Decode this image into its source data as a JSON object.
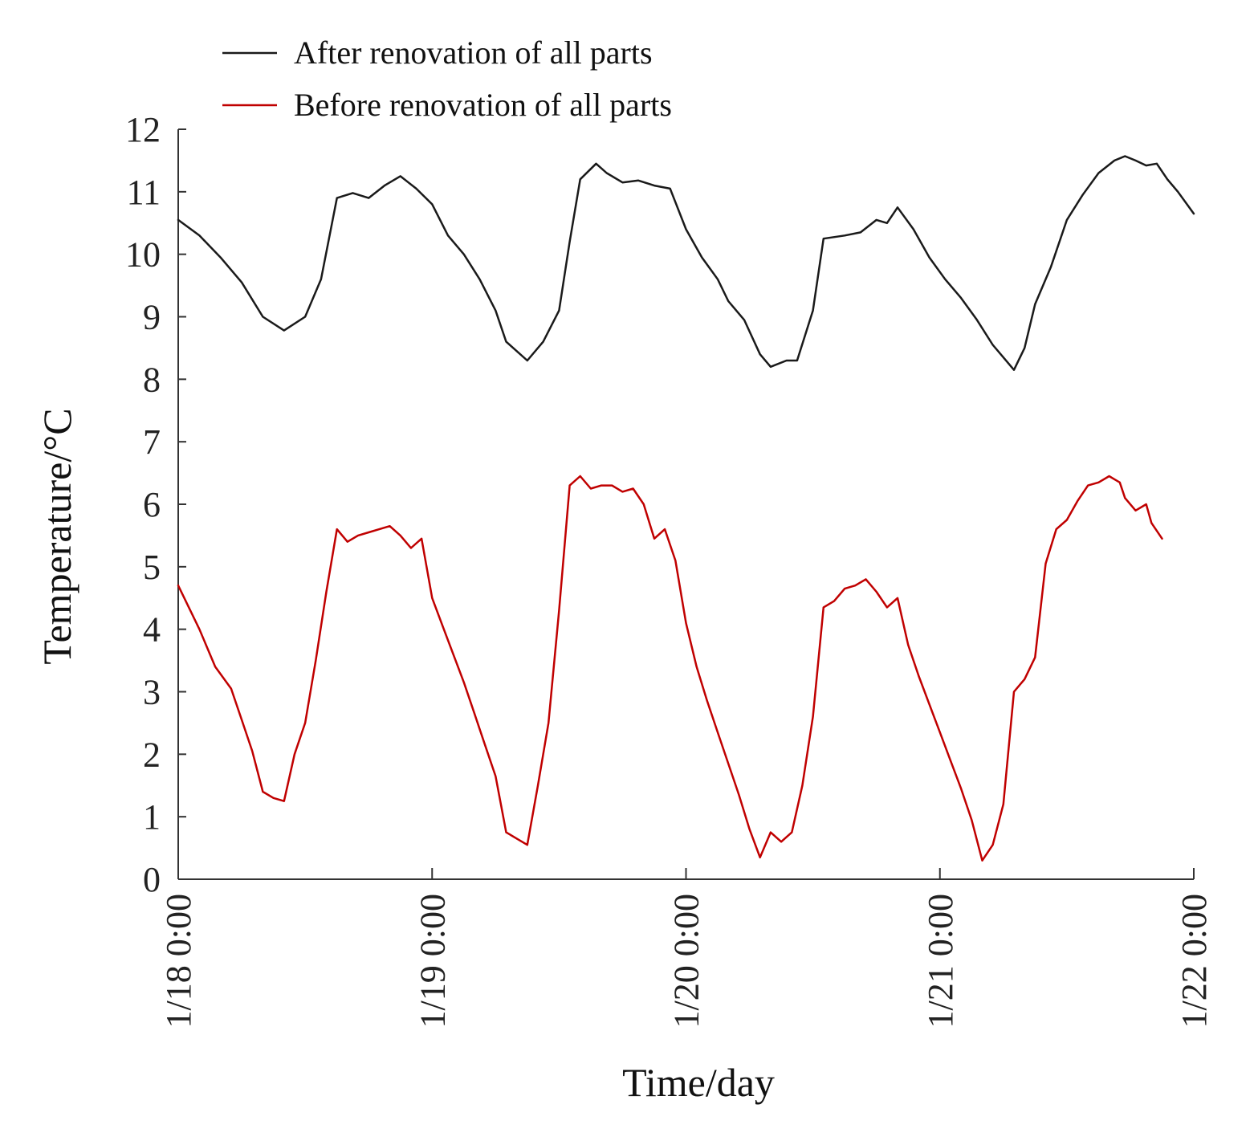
{
  "chart_data": {
    "type": "line",
    "title": "",
    "xlabel": "Time/day",
    "ylabel": "Temperature/°C",
    "ylim": [
      0,
      12
    ],
    "xlim": [
      0,
      96
    ],
    "yticks": [
      0,
      1,
      2,
      3,
      4,
      5,
      6,
      7,
      8,
      9,
      10,
      11,
      12
    ],
    "xticks": [
      {
        "x": 0,
        "label": "1/18 0:00"
      },
      {
        "x": 24,
        "label": "1/19 0:00"
      },
      {
        "x": 48,
        "label": "1/20 0:00"
      },
      {
        "x": 72,
        "label": "1/21 0:00"
      },
      {
        "x": 96,
        "label": "1/22 0:00"
      }
    ],
    "legend_position": "top-left",
    "series": [
      {
        "name": "After renovation of all parts",
        "color": "#1a1a1a",
        "points": [
          [
            0,
            10.55
          ],
          [
            2,
            10.3
          ],
          [
            4,
            9.95
          ],
          [
            6,
            9.55
          ],
          [
            8,
            9.0
          ],
          [
            10,
            8.78
          ],
          [
            12,
            9.0
          ],
          [
            13.5,
            9.6
          ],
          [
            15,
            10.9
          ],
          [
            16.5,
            10.98
          ],
          [
            18,
            10.9
          ],
          [
            19.5,
            11.1
          ],
          [
            21,
            11.25
          ],
          [
            22.5,
            11.05
          ],
          [
            24,
            10.8
          ],
          [
            25.5,
            10.3
          ],
          [
            27,
            10.0
          ],
          [
            28.5,
            9.6
          ],
          [
            30,
            9.1
          ],
          [
            31,
            8.6
          ],
          [
            32,
            8.45
          ],
          [
            33,
            8.3
          ],
          [
            34.5,
            8.6
          ],
          [
            36,
            9.1
          ],
          [
            37,
            10.2
          ],
          [
            38,
            11.2
          ],
          [
            39.5,
            11.45
          ],
          [
            40.5,
            11.3
          ],
          [
            42,
            11.15
          ],
          [
            43.5,
            11.18
          ],
          [
            45,
            11.1
          ],
          [
            46.5,
            11.05
          ],
          [
            48,
            10.4
          ],
          [
            49.5,
            9.95
          ],
          [
            51,
            9.6
          ],
          [
            52,
            9.25
          ],
          [
            53.5,
            8.95
          ],
          [
            55,
            8.4
          ],
          [
            56,
            8.2
          ],
          [
            57.5,
            8.3
          ],
          [
            58.5,
            8.3
          ],
          [
            60,
            9.1
          ],
          [
            61,
            10.25
          ],
          [
            63,
            10.3
          ],
          [
            64.5,
            10.35
          ],
          [
            66,
            10.55
          ],
          [
            67,
            10.5
          ],
          [
            68,
            10.75
          ],
          [
            69.5,
            10.4
          ],
          [
            71,
            9.95
          ],
          [
            72.5,
            9.6
          ],
          [
            74,
            9.3
          ],
          [
            75.5,
            8.95
          ],
          [
            77,
            8.55
          ],
          [
            78,
            8.35
          ],
          [
            79,
            8.15
          ],
          [
            80,
            8.5
          ],
          [
            81,
            9.2
          ],
          [
            82.5,
            9.8
          ],
          [
            84,
            10.55
          ],
          [
            85.5,
            10.95
          ],
          [
            87,
            11.3
          ],
          [
            88.5,
            11.5
          ],
          [
            89.5,
            11.57
          ],
          [
            90.5,
            11.5
          ],
          [
            91.5,
            11.42
          ],
          [
            92.5,
            11.45
          ],
          [
            93.5,
            11.2
          ],
          [
            94.5,
            11.0
          ],
          [
            96,
            10.65
          ]
        ]
      },
      {
        "name": "Before renovation of all parts",
        "color": "#c00000",
        "points": [
          [
            0,
            4.7
          ],
          [
            1,
            4.35
          ],
          [
            2,
            4.0
          ],
          [
            3.5,
            3.4
          ],
          [
            5,
            3.05
          ],
          [
            6,
            2.55
          ],
          [
            7,
            2.05
          ],
          [
            8,
            1.4
          ],
          [
            9,
            1.3
          ],
          [
            10,
            1.25
          ],
          [
            11,
            2.0
          ],
          [
            12,
            2.5
          ],
          [
            13,
            3.5
          ],
          [
            14,
            4.6
          ],
          [
            15,
            5.6
          ],
          [
            16,
            5.4
          ],
          [
            17,
            5.5
          ],
          [
            18,
            5.55
          ],
          [
            19,
            5.6
          ],
          [
            20,
            5.65
          ],
          [
            21,
            5.5
          ],
          [
            22,
            5.3
          ],
          [
            23,
            5.45
          ],
          [
            24,
            4.5
          ],
          [
            25,
            4.05
          ],
          [
            26,
            3.6
          ],
          [
            27,
            3.15
          ],
          [
            28,
            2.65
          ],
          [
            29,
            2.15
          ],
          [
            30,
            1.65
          ],
          [
            31,
            0.75
          ],
          [
            32,
            0.65
          ],
          [
            33,
            0.55
          ],
          [
            34,
            1.5
          ],
          [
            35,
            2.5
          ],
          [
            36,
            4.3
          ],
          [
            37,
            6.3
          ],
          [
            38,
            6.45
          ],
          [
            39,
            6.25
          ],
          [
            40,
            6.3
          ],
          [
            41,
            6.3
          ],
          [
            42,
            6.2
          ],
          [
            43,
            6.25
          ],
          [
            44,
            6.0
          ],
          [
            45,
            5.45
          ],
          [
            46,
            5.6
          ],
          [
            47,
            5.1
          ],
          [
            48,
            4.1
          ],
          [
            49,
            3.4
          ],
          [
            50,
            2.85
          ],
          [
            51,
            2.35
          ],
          [
            52,
            1.85
          ],
          [
            53,
            1.35
          ],
          [
            54,
            0.8
          ],
          [
            55,
            0.35
          ],
          [
            56,
            0.75
          ],
          [
            57,
            0.6
          ],
          [
            58,
            0.75
          ],
          [
            59,
            1.5
          ],
          [
            60,
            2.6
          ],
          [
            61,
            4.35
          ],
          [
            62,
            4.45
          ],
          [
            63,
            4.65
          ],
          [
            64,
            4.7
          ],
          [
            65,
            4.8
          ],
          [
            66,
            4.6
          ],
          [
            67,
            4.35
          ],
          [
            68,
            4.5
          ],
          [
            69,
            3.75
          ],
          [
            70,
            3.25
          ],
          [
            71,
            2.8
          ],
          [
            72,
            2.35
          ],
          [
            73,
            1.9
          ],
          [
            74,
            1.45
          ],
          [
            75,
            0.95
          ],
          [
            76,
            0.3
          ],
          [
            77,
            0.55
          ],
          [
            78,
            1.2
          ],
          [
            79,
            3.0
          ],
          [
            80,
            3.2
          ],
          [
            81,
            3.55
          ],
          [
            82,
            5.05
          ],
          [
            83,
            5.6
          ],
          [
            84,
            5.75
          ],
          [
            85,
            6.05
          ],
          [
            86,
            6.3
          ],
          [
            87,
            6.35
          ],
          [
            88,
            6.45
          ],
          [
            88.5,
            6.4
          ],
          [
            89,
            6.35
          ],
          [
            89.5,
            6.1
          ],
          [
            90.5,
            5.9
          ],
          [
            91.5,
            6.0
          ],
          [
            92,
            5.7
          ],
          [
            93,
            5.45
          ]
        ]
      }
    ]
  }
}
